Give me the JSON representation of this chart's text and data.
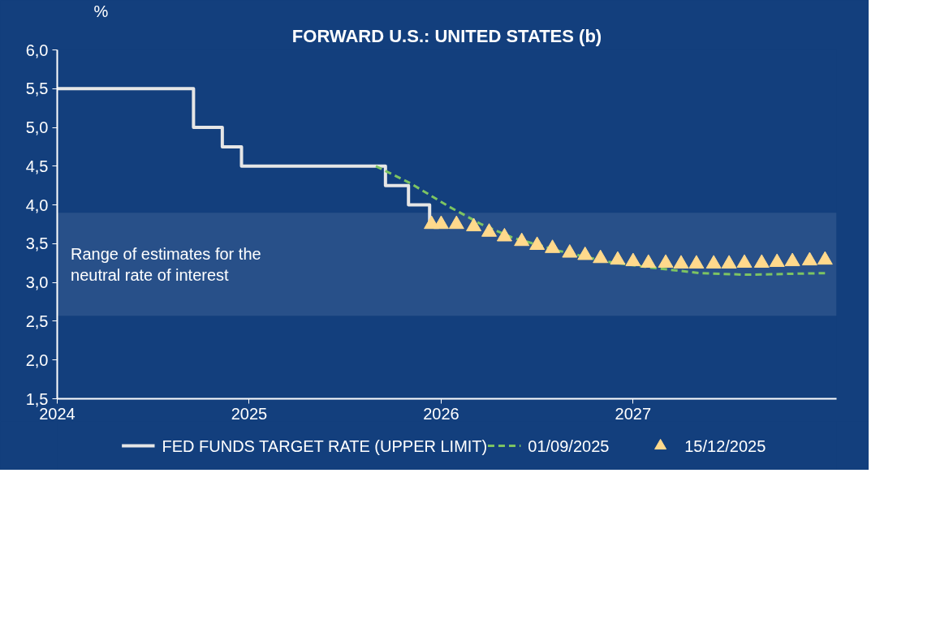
{
  "chart_data": {
    "type": "line",
    "title": "FORWARD U.S.: UNITED STATES (b)",
    "ylabel": "%",
    "xlim": [
      2024,
      2028.06
    ],
    "ylim": [
      1.5,
      6.0
    ],
    "xticks": [
      {
        "value": 2024,
        "label": "2024"
      },
      {
        "value": 2025,
        "label": "2025"
      },
      {
        "value": 2026,
        "label": "2026"
      },
      {
        "value": 2027,
        "label": "2027"
      }
    ],
    "yticks": [
      {
        "value": 1.5,
        "label": "1,5"
      },
      {
        "value": 2.0,
        "label": "2,0"
      },
      {
        "value": 2.5,
        "label": "2,5"
      },
      {
        "value": 3.0,
        "label": "3,0"
      },
      {
        "value": 3.5,
        "label": "3,5"
      },
      {
        "value": 4.0,
        "label": "4,0"
      },
      {
        "value": 4.5,
        "label": "4,5"
      },
      {
        "value": 5.0,
        "label": "5,0"
      },
      {
        "value": 5.5,
        "label": "5,5"
      },
      {
        "value": 6.0,
        "label": "6,0"
      }
    ],
    "grid": false,
    "legend": "bottom",
    "bands": [
      {
        "axis": "y",
        "from": 2.57,
        "to": 3.9,
        "label": "Range of estimates for the neutral rate of interest",
        "color": "#285089"
      }
    ],
    "series": [
      {
        "name": "FED FUNDS TARGET RATE (UPPER LIMIT)",
        "type": "step",
        "color": "#e6e6e6",
        "marker": "none",
        "line_style": "solid",
        "x": [
          2024,
          2024.71,
          2024.86,
          2024.96,
          2025.71,
          2025.83,
          2025.94
        ],
        "values": [
          5.5,
          5.0,
          4.75,
          4.5,
          4.25,
          4.0,
          3.75
        ]
      },
      {
        "name": "01/09/2025",
        "color": "#7dc462",
        "marker": "none",
        "line_style": "dashed",
        "x": [
          2025.66,
          2025.84,
          2026.04,
          2026.21,
          2026.37,
          2026.61,
          2026.86,
          2027.1,
          2027.35,
          2027.59,
          2028.0
        ],
        "values": [
          4.5,
          4.28,
          3.98,
          3.75,
          3.58,
          3.41,
          3.27,
          3.19,
          3.12,
          3.1,
          3.12
        ]
      },
      {
        "name": "15/12/2025",
        "type": "scatter",
        "color": "#ffd98c",
        "marker": "triangle",
        "x": [
          2025.95,
          2026.0,
          2026.08,
          2026.17,
          2026.25,
          2026.33,
          2026.42,
          2026.5,
          2026.58,
          2026.67,
          2026.75,
          2026.83,
          2026.92,
          2027.0,
          2027.08,
          2027.17,
          2027.25,
          2027.33,
          2027.42,
          2027.5,
          2027.58,
          2027.67,
          2027.75,
          2027.83,
          2027.92,
          2028.0
        ],
        "values": [
          3.75,
          3.75,
          3.75,
          3.72,
          3.65,
          3.59,
          3.53,
          3.48,
          3.44,
          3.38,
          3.35,
          3.31,
          3.29,
          3.27,
          3.25,
          3.25,
          3.24,
          3.24,
          3.24,
          3.24,
          3.25,
          3.25,
          3.26,
          3.27,
          3.28,
          3.29
        ]
      }
    ]
  }
}
